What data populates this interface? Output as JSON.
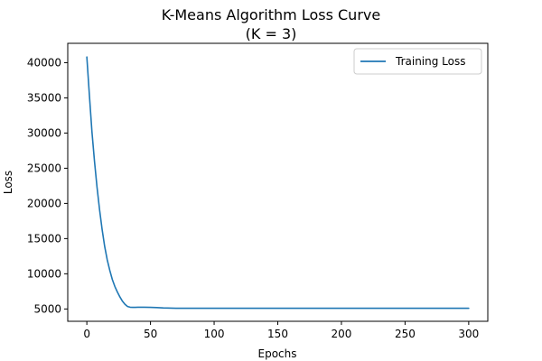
{
  "chart_data": {
    "type": "line",
    "title": "K-Means Algorithm Loss Curve",
    "subtitle": "(K = 3)",
    "xlabel": "Epochs",
    "ylabel": "Loss",
    "xlim": [
      -15,
      315
    ],
    "ylim": [
      3250,
      42750
    ],
    "xticks": [
      0,
      50,
      100,
      150,
      200,
      250,
      300
    ],
    "yticks": [
      5000,
      10000,
      15000,
      20000,
      25000,
      30000,
      35000,
      40000
    ],
    "grid": false,
    "legend_position": "top-right",
    "series": [
      {
        "name": "Training Loss",
        "color": "#1f77b4",
        "x": [
          0,
          2,
          4,
          6,
          8,
          10,
          12,
          14,
          16,
          18,
          20,
          22,
          24,
          26,
          28,
          30,
          32,
          34,
          36,
          38,
          40,
          45,
          50,
          55,
          60,
          70,
          80,
          100,
          150,
          200,
          250,
          300
        ],
        "y": [
          40800,
          35400,
          30200,
          26000,
          22300,
          19100,
          16300,
          13900,
          12000,
          10500,
          9200,
          8200,
          7400,
          6700,
          6100,
          5650,
          5350,
          5250,
          5230,
          5230,
          5240,
          5250,
          5230,
          5200,
          5150,
          5100,
          5100,
          5100,
          5100,
          5100,
          5100,
          5100
        ]
      }
    ]
  }
}
